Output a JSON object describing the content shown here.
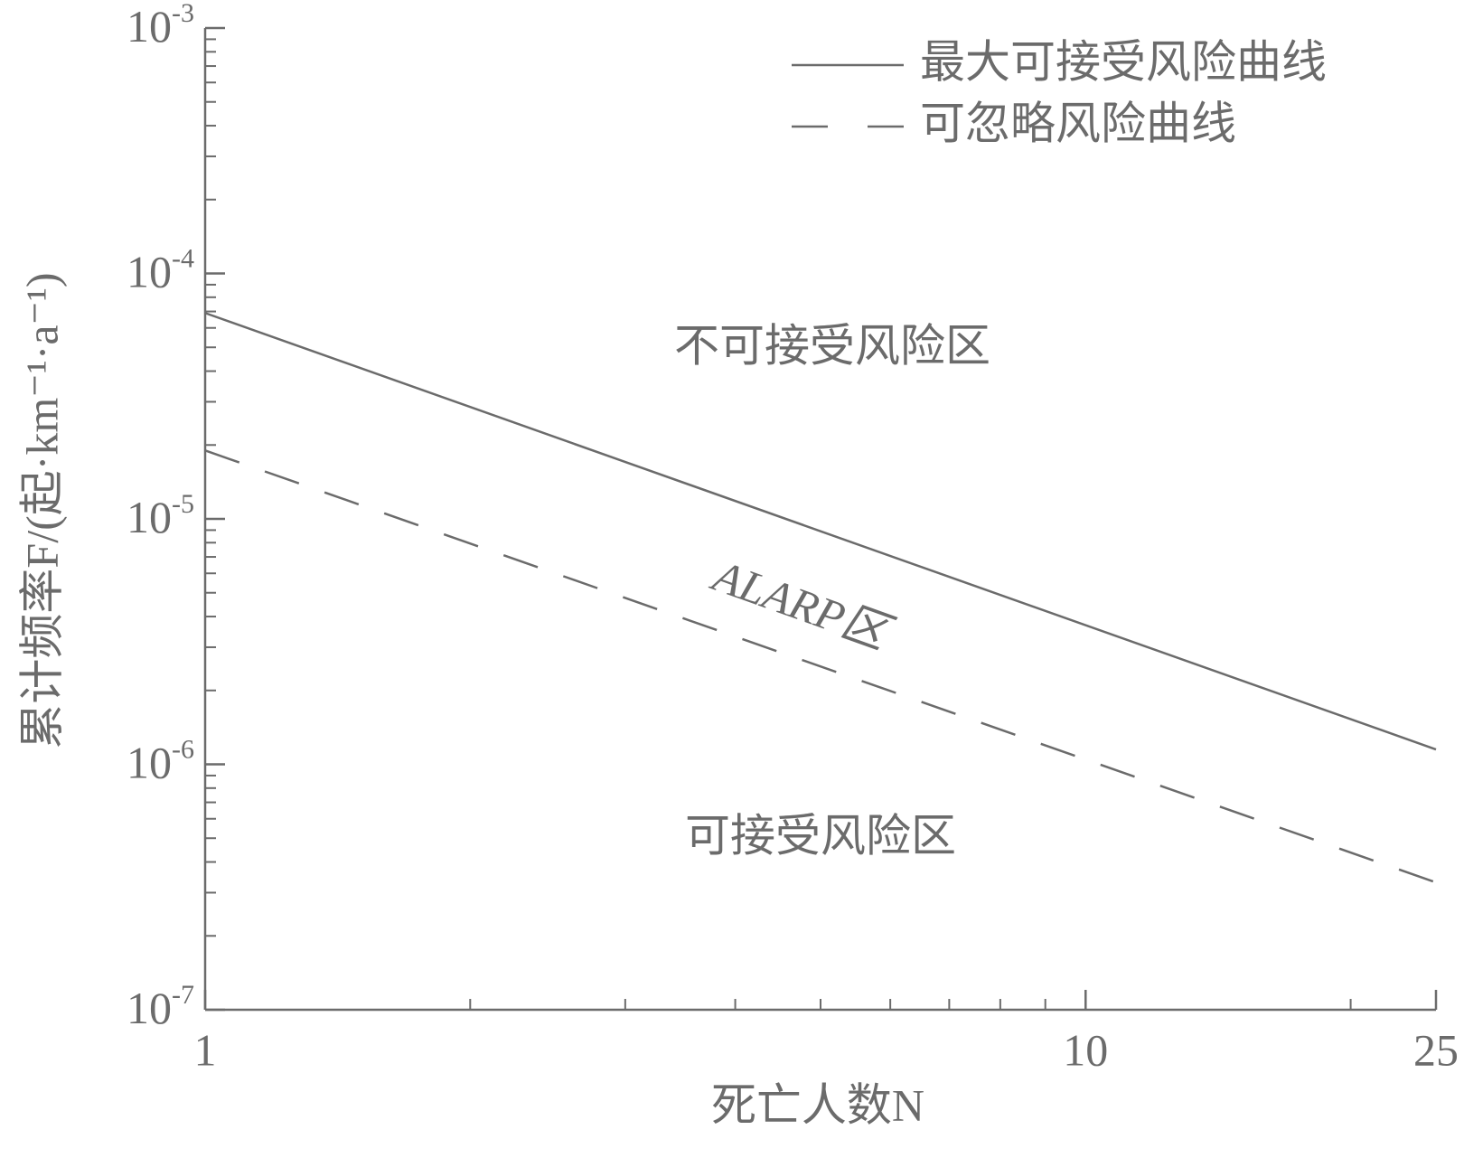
{
  "chart_data": {
    "type": "line",
    "xlabel": "死亡人数N",
    "ylabel": "累计频率F/(起·km⁻¹·a⁻¹)",
    "x": [
      1,
      25
    ],
    "series": [
      {
        "name": "最大可接受风险曲线",
        "color": "#6b6b6b",
        "style": "solid",
        "values": [
          6.9e-05,
          1.15e-06
        ]
      },
      {
        "name": "可忽略风险曲线",
        "color": "#6b6b6b",
        "style": "dashed",
        "values": [
          1.9e-05,
          3.3e-07
        ]
      }
    ],
    "xlim": [
      1,
      25
    ],
    "xscale": "log",
    "yscale": "log",
    "xticks": [
      1,
      10,
      25
    ],
    "xminor": [
      2,
      3,
      4,
      5,
      6,
      7,
      8,
      9,
      20
    ],
    "ylim": [
      1e-07,
      0.001
    ],
    "yticks": [
      {
        "value": 1e-07,
        "label": "10",
        "exponent": "-7"
      },
      {
        "value": 1e-06,
        "label": "10",
        "exponent": "-6"
      },
      {
        "value": 1e-05,
        "label": "10",
        "exponent": "-5"
      },
      {
        "value": 0.0001,
        "label": "10",
        "exponent": "-4"
      },
      {
        "value": 0.001,
        "label": "10",
        "exponent": "-3"
      }
    ],
    "yminor": [
      2e-07,
      3e-07,
      4e-07,
      5e-07,
      6e-07,
      7e-07,
      8e-07,
      9e-07,
      2e-06,
      3e-06,
      4e-06,
      5e-06,
      6e-06,
      7e-06,
      8e-06,
      9e-06,
      2e-05,
      3e-05,
      4e-05,
      5e-05,
      6e-05,
      7e-05,
      8e-05,
      9e-05,
      0.0002,
      0.0003,
      0.0004,
      0.0005,
      0.0006,
      0.0007,
      0.0008,
      0.0009
    ],
    "legend": "upper right",
    "annotations": [
      "不可接受风险区",
      "ALARP区",
      "可接受风险区"
    ]
  }
}
